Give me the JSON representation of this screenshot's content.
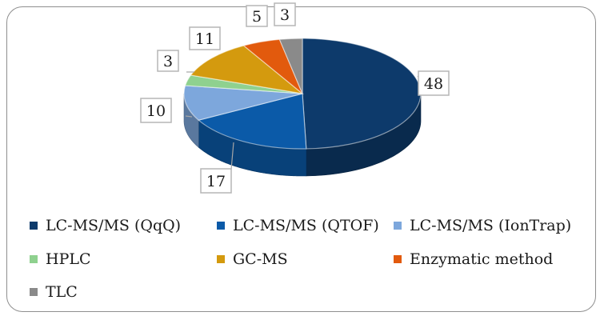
{
  "chart_data": {
    "type": "pie",
    "title": "",
    "style": "3d",
    "categories": [
      "LC-MS/MS (QqQ)",
      "LC-MS/MS (QTOF)",
      "LC-MS/MS (IonTrap)",
      "HPLC",
      "GC-MS",
      "Enzymatic method",
      "TLC"
    ],
    "values": [
      48,
      17,
      10,
      3,
      11,
      5,
      3
    ],
    "labels": [
      "48",
      "17",
      "10",
      "3",
      "11",
      "5",
      "3"
    ],
    "colors": [
      "#0d3a6b",
      "#0b5aa8",
      "#7da7dc",
      "#8fd18f",
      "#d49a0e",
      "#e25a0d",
      "#8a8a8a"
    ],
    "legend_position": "bottom"
  }
}
